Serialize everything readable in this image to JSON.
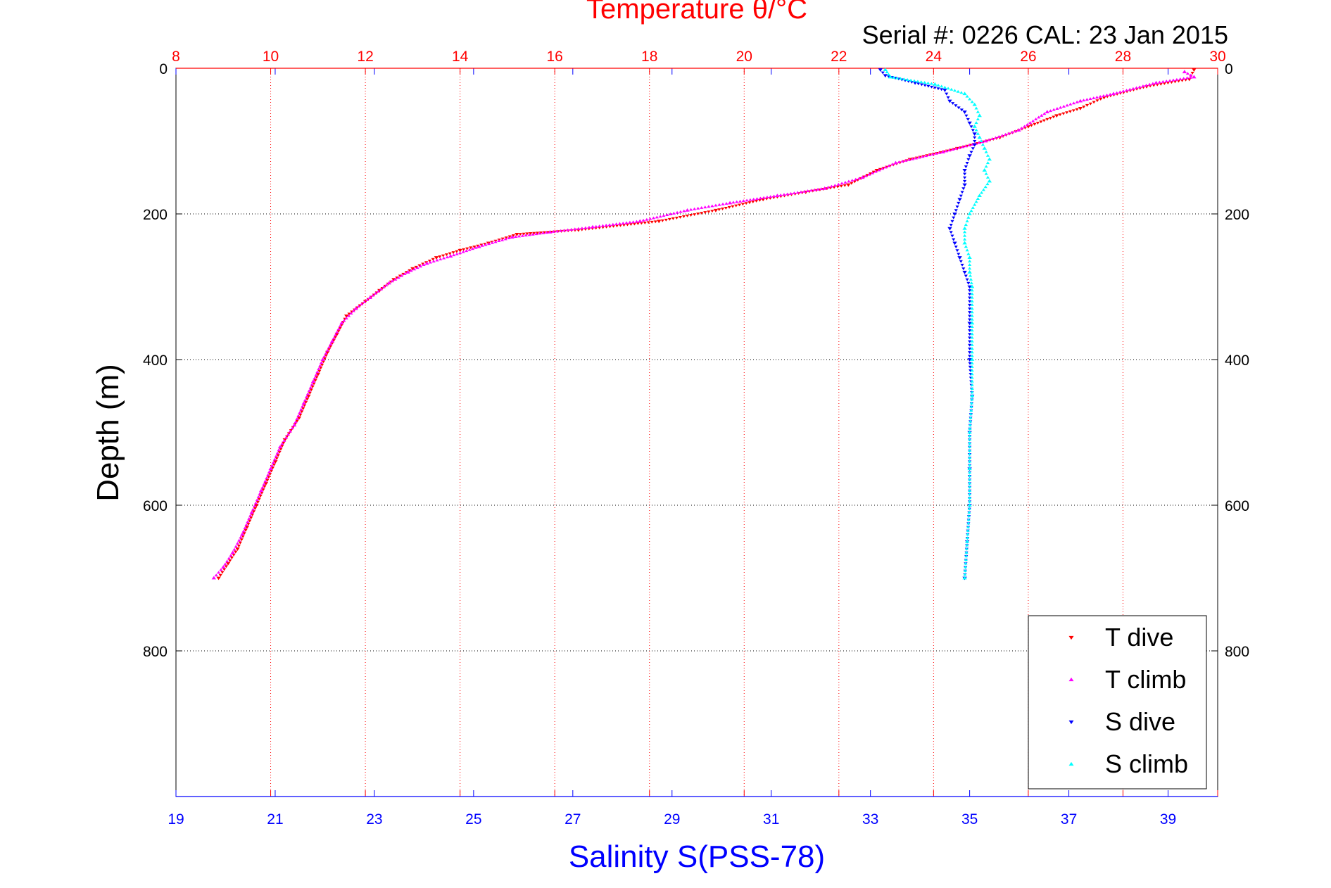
{
  "chart_data": {
    "type": "scatter",
    "title": "Temperature θ/°C",
    "subtitle": "Serial #: 0226  CAL: 23 Jan 2015",
    "ylabel": "Depth (m)",
    "xlabel_bottom": "Salinity S(PSS-78)",
    "y_axis": {
      "range": [
        0,
        1000
      ],
      "reversed": true,
      "ticks": [
        0,
        200,
        400,
        600,
        800
      ],
      "tick_labels": [
        "0",
        "200",
        "400",
        "600",
        "800"
      ]
    },
    "x_axis_top": {
      "quantity": "temperature",
      "range": [
        8,
        30
      ],
      "ticks": [
        8,
        10,
        12,
        14,
        16,
        18,
        20,
        22,
        24,
        26,
        28,
        30
      ],
      "tick_labels": [
        "8",
        "10",
        "12",
        "14",
        "16",
        "18",
        "20",
        "22",
        "24",
        "26",
        "28",
        "30"
      ],
      "color": "#ff0000"
    },
    "x_axis_bottom": {
      "quantity": "salinity",
      "range": [
        19,
        40
      ],
      "ticks": [
        19,
        21,
        23,
        25,
        27,
        29,
        31,
        33,
        35,
        37,
        39
      ],
      "tick_labels": [
        "19",
        "21",
        "23",
        "25",
        "27",
        "29",
        "31",
        "33",
        "35",
        "37",
        "39"
      ],
      "color": "#0000ff"
    },
    "grid": true,
    "legend_position": "bottom-right",
    "series": [
      {
        "name": "T dive",
        "axis": "top",
        "color": "#ff0000",
        "marker": "triangle-down",
        "points": [
          [
            29.5,
            2
          ],
          [
            29.4,
            15
          ],
          [
            28.5,
            25
          ],
          [
            27.6,
            40
          ],
          [
            27.1,
            55
          ],
          [
            26.6,
            65
          ],
          [
            26.0,
            80
          ],
          [
            25.4,
            95
          ],
          [
            24.5,
            110
          ],
          [
            23.5,
            125
          ],
          [
            22.8,
            140
          ],
          [
            22.2,
            160
          ],
          [
            21.3,
            170
          ],
          [
            20.4,
            180
          ],
          [
            19.4,
            195
          ],
          [
            18.2,
            210
          ],
          [
            16.5,
            222
          ],
          [
            15.2,
            228
          ],
          [
            14.6,
            240
          ],
          [
            14.0,
            250
          ],
          [
            13.5,
            260
          ],
          [
            13.0,
            275
          ],
          [
            12.6,
            290
          ],
          [
            12.3,
            305
          ],
          [
            12.0,
            320
          ],
          [
            11.6,
            340
          ],
          [
            11.4,
            365
          ],
          [
            11.2,
            390
          ],
          [
            11.0,
            420
          ],
          [
            10.8,
            450
          ],
          [
            10.6,
            480
          ],
          [
            10.3,
            510
          ],
          [
            10.1,
            540
          ],
          [
            9.9,
            570
          ],
          [
            9.7,
            600
          ],
          [
            9.5,
            630
          ],
          [
            9.3,
            660
          ],
          [
            9.1,
            680
          ],
          [
            8.9,
            700
          ]
        ]
      },
      {
        "name": "T climb",
        "axis": "top",
        "color": "#ff00ff",
        "marker": "triangle-up",
        "points": [
          [
            29.3,
            5
          ],
          [
            29.5,
            12
          ],
          [
            28.7,
            20
          ],
          [
            27.8,
            35
          ],
          [
            27.1,
            45
          ],
          [
            26.4,
            60
          ],
          [
            25.8,
            85
          ],
          [
            25.1,
            100
          ],
          [
            24.2,
            115
          ],
          [
            23.2,
            130
          ],
          [
            22.5,
            150
          ],
          [
            21.7,
            165
          ],
          [
            20.7,
            175
          ],
          [
            19.7,
            185
          ],
          [
            18.8,
            195
          ],
          [
            17.8,
            210
          ],
          [
            16.8,
            218
          ],
          [
            15.9,
            225
          ],
          [
            15.1,
            232
          ],
          [
            14.4,
            245
          ],
          [
            13.8,
            258
          ],
          [
            13.3,
            268
          ],
          [
            12.9,
            280
          ],
          [
            12.5,
            295
          ],
          [
            12.1,
            315
          ],
          [
            11.8,
            330
          ],
          [
            11.5,
            350
          ],
          [
            11.3,
            375
          ],
          [
            11.1,
            400
          ],
          [
            10.9,
            430
          ],
          [
            10.7,
            460
          ],
          [
            10.5,
            490
          ],
          [
            10.2,
            520
          ],
          [
            10.0,
            550
          ],
          [
            9.8,
            580
          ],
          [
            9.6,
            610
          ],
          [
            9.4,
            640
          ],
          [
            9.2,
            665
          ],
          [
            9.0,
            685
          ],
          [
            8.8,
            700
          ]
        ]
      },
      {
        "name": "S dive",
        "axis": "bottom",
        "color": "#0000ff",
        "marker": "triangle-down",
        "points": [
          [
            33.2,
            2
          ],
          [
            33.3,
            10
          ],
          [
            33.9,
            20
          ],
          [
            34.5,
            30
          ],
          [
            34.6,
            45
          ],
          [
            34.9,
            60
          ],
          [
            35.0,
            75
          ],
          [
            35.1,
            90
          ],
          [
            35.1,
            105
          ],
          [
            35.0,
            120
          ],
          [
            34.9,
            140
          ],
          [
            34.9,
            160
          ],
          [
            34.8,
            180
          ],
          [
            34.7,
            200
          ],
          [
            34.6,
            220
          ],
          [
            34.7,
            240
          ],
          [
            34.8,
            260
          ],
          [
            34.9,
            280
          ],
          [
            35.0,
            300
          ],
          [
            35.0,
            350
          ],
          [
            35.0,
            400
          ],
          [
            35.05,
            450
          ],
          [
            35.0,
            500
          ],
          [
            35.0,
            550
          ],
          [
            35.0,
            600
          ],
          [
            34.95,
            650
          ],
          [
            34.9,
            700
          ]
        ]
      },
      {
        "name": "S climb",
        "axis": "bottom",
        "color": "#00ffff",
        "marker": "triangle-up",
        "points": [
          [
            33.3,
            2
          ],
          [
            33.4,
            12
          ],
          [
            34.3,
            22
          ],
          [
            34.9,
            35
          ],
          [
            35.1,
            50
          ],
          [
            35.2,
            65
          ],
          [
            35.1,
            80
          ],
          [
            35.2,
            95
          ],
          [
            35.3,
            110
          ],
          [
            35.4,
            125
          ],
          [
            35.3,
            140
          ],
          [
            35.4,
            155
          ],
          [
            35.2,
            175
          ],
          [
            35.0,
            200
          ],
          [
            34.9,
            220
          ],
          [
            34.9,
            240
          ],
          [
            35.0,
            260
          ],
          [
            35.0,
            280
          ],
          [
            35.05,
            300
          ],
          [
            35.05,
            350
          ],
          [
            35.05,
            400
          ],
          [
            35.05,
            450
          ],
          [
            35.0,
            500
          ],
          [
            35.0,
            550
          ],
          [
            35.0,
            600
          ],
          [
            34.95,
            650
          ],
          [
            34.9,
            700
          ]
        ]
      }
    ]
  }
}
